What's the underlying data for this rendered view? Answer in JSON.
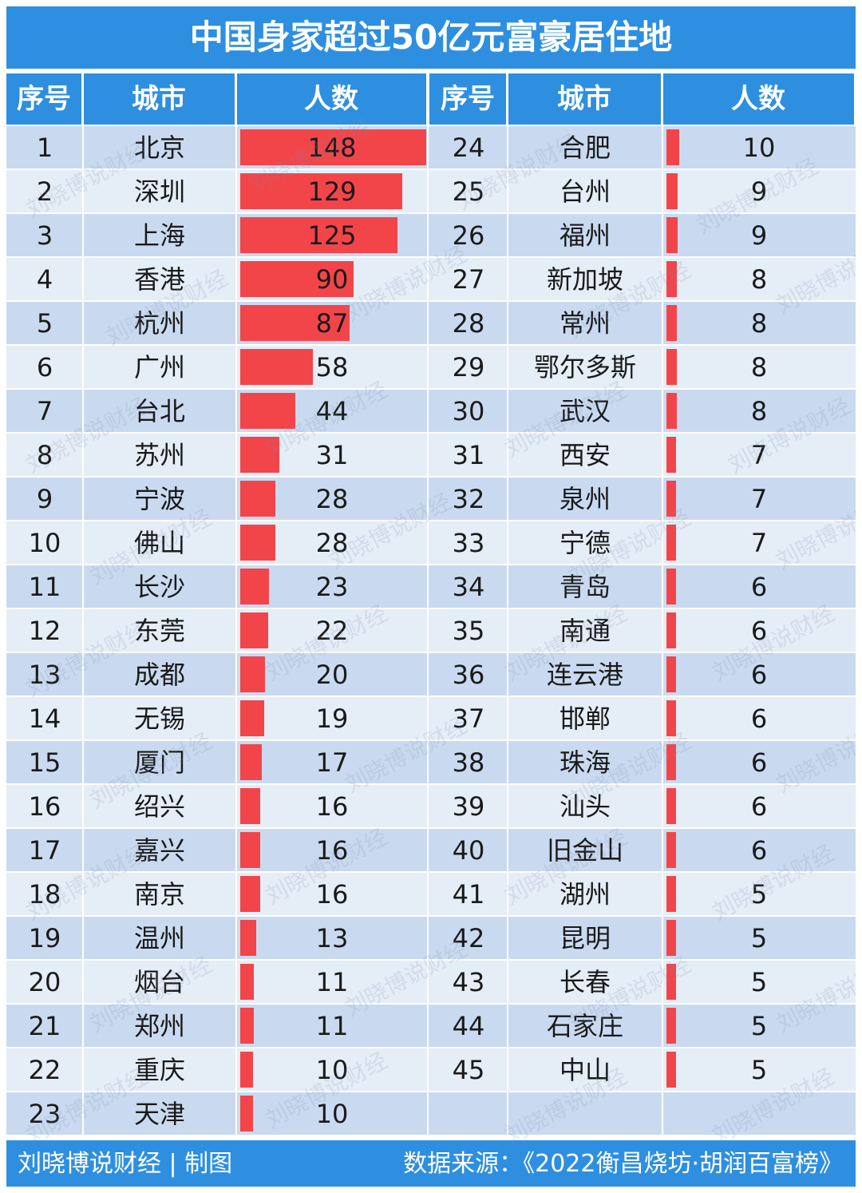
{
  "chart_data": {
    "type": "table",
    "title": "中国身家超过50亿元富豪居住地",
    "columns": [
      "序号",
      "城市",
      "人数"
    ],
    "max_value": 148,
    "rows": [
      {
        "rank": "1",
        "city": "北京",
        "count": 148
      },
      {
        "rank": "2",
        "city": "深圳",
        "count": 129
      },
      {
        "rank": "3",
        "city": "上海",
        "count": 125
      },
      {
        "rank": "4",
        "city": "香港",
        "count": 90
      },
      {
        "rank": "5",
        "city": "杭州",
        "count": 87
      },
      {
        "rank": "6",
        "city": "广州",
        "count": 58
      },
      {
        "rank": "7",
        "city": "台北",
        "count": 44
      },
      {
        "rank": "8",
        "city": "苏州",
        "count": 31
      },
      {
        "rank": "9",
        "city": "宁波",
        "count": 28
      },
      {
        "rank": "10",
        "city": "佛山",
        "count": 28
      },
      {
        "rank": "11",
        "city": "长沙",
        "count": 23
      },
      {
        "rank": "12",
        "city": "东莞",
        "count": 22
      },
      {
        "rank": "13",
        "city": "成都",
        "count": 20
      },
      {
        "rank": "14",
        "city": "无锡",
        "count": 19
      },
      {
        "rank": "15",
        "city": "厦门",
        "count": 17
      },
      {
        "rank": "16",
        "city": "绍兴",
        "count": 16
      },
      {
        "rank": "17",
        "city": "嘉兴",
        "count": 16
      },
      {
        "rank": "18",
        "city": "南京",
        "count": 16
      },
      {
        "rank": "19",
        "city": "温州",
        "count": 13
      },
      {
        "rank": "20",
        "city": "烟台",
        "count": 11
      },
      {
        "rank": "21",
        "city": "郑州",
        "count": 11
      },
      {
        "rank": "22",
        "city": "重庆",
        "count": 10
      },
      {
        "rank": "23",
        "city": "天津",
        "count": 10
      },
      {
        "rank": "24",
        "city": "合肥",
        "count": 10
      },
      {
        "rank": "25",
        "city": "台州",
        "count": 9
      },
      {
        "rank": "26",
        "city": "福州",
        "count": 9
      },
      {
        "rank": "27",
        "city": "新加坡",
        "count": 8
      },
      {
        "rank": "28",
        "city": "常州",
        "count": 8
      },
      {
        "rank": "29",
        "city": "鄂尔多斯",
        "count": 8
      },
      {
        "rank": "30",
        "city": "武汉",
        "count": 8
      },
      {
        "rank": "31",
        "city": "西安",
        "count": 7
      },
      {
        "rank": "32",
        "city": "泉州",
        "count": 7
      },
      {
        "rank": "33",
        "city": "宁德",
        "count": 7
      },
      {
        "rank": "34",
        "city": "青岛",
        "count": 6
      },
      {
        "rank": "35",
        "city": "南通",
        "count": 6
      },
      {
        "rank": "36",
        "city": "连云港",
        "count": 6
      },
      {
        "rank": "37",
        "city": "邯郸",
        "count": 6
      },
      {
        "rank": "38",
        "city": "珠海",
        "count": 6
      },
      {
        "rank": "39",
        "city": "汕头",
        "count": 6
      },
      {
        "rank": "40",
        "city": "旧金山",
        "count": 6
      },
      {
        "rank": "41",
        "city": "湖州",
        "count": 5
      },
      {
        "rank": "42",
        "city": "昆明",
        "count": 5
      },
      {
        "rank": "43",
        "city": "长春",
        "count": 5
      },
      {
        "rank": "44",
        "city": "石家庄",
        "count": 5
      },
      {
        "rank": "45",
        "city": "中山",
        "count": 5
      }
    ],
    "bar_color": "#f2454a",
    "header_color": "#2e8fe0"
  },
  "footer": {
    "credit": "刘晓博说财经 | 制图",
    "source": "数据来源：《2022衡昌烧坊·胡润百富榜》"
  },
  "watermark": "刘晓博说财经"
}
